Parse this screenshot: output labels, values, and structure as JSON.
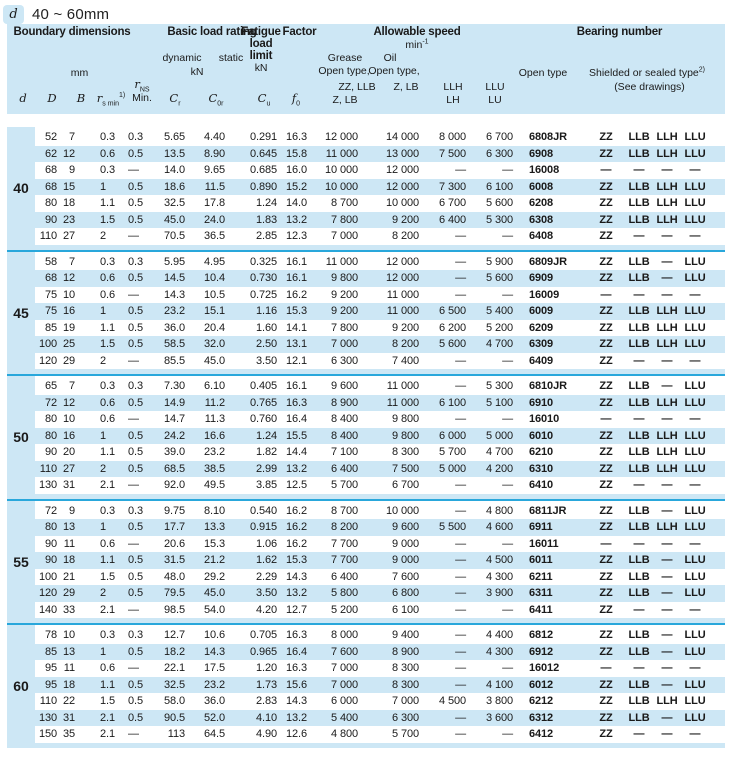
{
  "title": {
    "badge": "d",
    "range": "40 ~ 60mm"
  },
  "colors": {
    "light_blue": "#cde7f5",
    "cyan_line": "#29a7db",
    "text": "#1a1a1a"
  },
  "header": {
    "boundary_dimensions": "Boundary dimensions",
    "mm": "mm",
    "basic_load_rating": "Basic load rating",
    "dynamic": "dynamic",
    "static": "static",
    "kn_dynamic": "kN",
    "fatigue_l1": "Fatigue",
    "fatigue_l2": "load",
    "fatigue_l3": "limit",
    "fatigue_kn": "kN",
    "factor": "Factor",
    "allowable_speed": "Allowable speed",
    "min_base": "min",
    "min_sup": "-1",
    "grease": "Grease",
    "oil": "Oil",
    "open_type_grease": "Open type,",
    "open_type_oil": "Open type,",
    "zz_llb": "ZZ, LLB",
    "z_lb_oil": "Z, LB",
    "z_lb_grease": "Z, LB",
    "llh": "LLH",
    "lh": "LH",
    "llu": "LLU",
    "lu": "LU",
    "bearing_number": "Bearing number",
    "open_type_bearing": "Open type",
    "shielded": "Shielded or sealed type",
    "shielded_sup": "2)",
    "see_drawings": "(See drawings)",
    "sym": {
      "d": "d",
      "D": "D",
      "B": "B",
      "r": "r",
      "s_min": "s min",
      "s_min_sup": "1)",
      "NS": "NS",
      "Min": "Min.",
      "C": "C",
      "r_sub": "r",
      "zero_r": "0r",
      "u": "u",
      "f": "f",
      "zero": "0"
    }
  },
  "columns": [
    "D",
    "B",
    "rs-min",
    "rns-min",
    "Cr",
    "C0r",
    "Cu",
    "f0",
    "speed-grease",
    "speed-oil",
    "speed-llh",
    "speed-llu",
    "bearing-number",
    "seal-zz",
    "seal-llb",
    "seal-llh",
    "seal-llu"
  ],
  "blocks": [
    {
      "d": "40",
      "rows": [
        [
          "52",
          "7",
          "0.3",
          "0.3",
          "5.65",
          "4.40",
          "0.291",
          "16.3",
          "12 000",
          "14 000",
          "8 000",
          "6 700",
          "6808JR",
          "ZZ",
          "LLB",
          "LLH",
          "LLU"
        ],
        [
          "62",
          "12",
          "0.6",
          "0.5",
          "13.5",
          "8.90",
          "0.645",
          "15.8",
          "11 000",
          "13 000",
          "7 500",
          "6 300",
          "6908",
          "ZZ",
          "LLB",
          "LLH",
          "LLU"
        ],
        [
          "68",
          "9",
          "0.3",
          "—",
          "14.0",
          "9.65",
          "0.685",
          "16.0",
          "10 000",
          "12 000",
          "—",
          "—",
          "16008",
          "—",
          "—",
          "—",
          "—"
        ],
        [
          "68",
          "15",
          "1",
          "0.5",
          "18.6",
          "11.5",
          "0.890",
          "15.2",
          "10 000",
          "12 000",
          "7 300",
          "6 100",
          "6008",
          "ZZ",
          "LLB",
          "LLH",
          "LLU"
        ],
        [
          "80",
          "18",
          "1.1",
          "0.5",
          "32.5",
          "17.8",
          "1.24",
          "14.0",
          "8 700",
          "10 000",
          "6 700",
          "5 600",
          "6208",
          "ZZ",
          "LLB",
          "LLH",
          "LLU"
        ],
        [
          "90",
          "23",
          "1.5",
          "0.5",
          "45.0",
          "24.0",
          "1.83",
          "13.2",
          "7 800",
          "9 200",
          "6 400",
          "5 300",
          "6308",
          "ZZ",
          "LLB",
          "LLH",
          "LLU"
        ],
        [
          "110",
          "27",
          "2",
          "—",
          "70.5",
          "36.5",
          "2.85",
          "12.3",
          "7 000",
          "8 200",
          "—",
          "—",
          "6408",
          "ZZ",
          "—",
          "—",
          "—"
        ]
      ]
    },
    {
      "d": "45",
      "rows": [
        [
          "58",
          "7",
          "0.3",
          "0.3",
          "5.95",
          "4.95",
          "0.325",
          "16.1",
          "11 000",
          "12 000",
          "—",
          "5 900",
          "6809JR",
          "ZZ",
          "LLB",
          "—",
          "LLU"
        ],
        [
          "68",
          "12",
          "0.6",
          "0.5",
          "14.5",
          "10.4",
          "0.730",
          "16.1",
          "9 800",
          "12 000",
          "—",
          "5 600",
          "6909",
          "ZZ",
          "LLB",
          "—",
          "LLU"
        ],
        [
          "75",
          "10",
          "0.6",
          "—",
          "14.3",
          "10.5",
          "0.725",
          "16.2",
          "9 200",
          "11 000",
          "—",
          "—",
          "16009",
          "—",
          "—",
          "—",
          "—"
        ],
        [
          "75",
          "16",
          "1",
          "0.5",
          "23.2",
          "15.1",
          "1.16",
          "15.3",
          "9 200",
          "11 000",
          "6 500",
          "5 400",
          "6009",
          "ZZ",
          "LLB",
          "LLH",
          "LLU"
        ],
        [
          "85",
          "19",
          "1.1",
          "0.5",
          "36.0",
          "20.4",
          "1.60",
          "14.1",
          "7 800",
          "9 200",
          "6 200",
          "5 200",
          "6209",
          "ZZ",
          "LLB",
          "LLH",
          "LLU"
        ],
        [
          "100",
          "25",
          "1.5",
          "0.5",
          "58.5",
          "32.0",
          "2.50",
          "13.1",
          "7 000",
          "8 200",
          "5 600",
          "4 700",
          "6309",
          "ZZ",
          "LLB",
          "LLH",
          "LLU"
        ],
        [
          "120",
          "29",
          "2",
          "—",
          "85.5",
          "45.0",
          "3.50",
          "12.1",
          "6 300",
          "7 400",
          "—",
          "—",
          "6409",
          "ZZ",
          "—",
          "—",
          "—"
        ]
      ]
    },
    {
      "d": "50",
      "rows": [
        [
          "65",
          "7",
          "0.3",
          "0.3",
          "7.30",
          "6.10",
          "0.405",
          "16.1",
          "9 600",
          "11 000",
          "—",
          "5 300",
          "6810JR",
          "ZZ",
          "LLB",
          "—",
          "LLU"
        ],
        [
          "72",
          "12",
          "0.6",
          "0.5",
          "14.9",
          "11.2",
          "0.765",
          "16.3",
          "8 900",
          "11 000",
          "6 100",
          "5 100",
          "6910",
          "ZZ",
          "LLB",
          "LLH",
          "LLU"
        ],
        [
          "80",
          "10",
          "0.6",
          "—",
          "14.7",
          "11.3",
          "0.760",
          "16.4",
          "8 400",
          "9 800",
          "—",
          "—",
          "16010",
          "—",
          "—",
          "—",
          "—"
        ],
        [
          "80",
          "16",
          "1",
          "0.5",
          "24.2",
          "16.6",
          "1.24",
          "15.5",
          "8 400",
          "9 800",
          "6 000",
          "5 000",
          "6010",
          "ZZ",
          "LLB",
          "LLH",
          "LLU"
        ],
        [
          "90",
          "20",
          "1.1",
          "0.5",
          "39.0",
          "23.2",
          "1.82",
          "14.4",
          "7 100",
          "8 300",
          "5 700",
          "4 700",
          "6210",
          "ZZ",
          "LLB",
          "LLH",
          "LLU"
        ],
        [
          "110",
          "27",
          "2",
          "0.5",
          "68.5",
          "38.5",
          "2.99",
          "13.2",
          "6 400",
          "7 500",
          "5 000",
          "4 200",
          "6310",
          "ZZ",
          "LLB",
          "LLH",
          "LLU"
        ],
        [
          "130",
          "31",
          "2.1",
          "—",
          "92.0",
          "49.5",
          "3.85",
          "12.5",
          "5 700",
          "6 700",
          "—",
          "—",
          "6410",
          "ZZ",
          "—",
          "—",
          "—"
        ]
      ]
    },
    {
      "d": "55",
      "rows": [
        [
          "72",
          "9",
          "0.3",
          "0.3",
          "9.75",
          "8.10",
          "0.540",
          "16.2",
          "8 700",
          "10 000",
          "—",
          "4 800",
          "6811JR",
          "ZZ",
          "LLB",
          "—",
          "LLU"
        ],
        [
          "80",
          "13",
          "1",
          "0.5",
          "17.7",
          "13.3",
          "0.915",
          "16.2",
          "8 200",
          "9 600",
          "5 500",
          "4 600",
          "6911",
          "ZZ",
          "LLB",
          "LLH",
          "LLU"
        ],
        [
          "90",
          "11",
          "0.6",
          "—",
          "20.6",
          "15.3",
          "1.06",
          "16.2",
          "7 700",
          "9 000",
          "—",
          "—",
          "16011",
          "—",
          "—",
          "—",
          "—"
        ],
        [
          "90",
          "18",
          "1.1",
          "0.5",
          "31.5",
          "21.2",
          "1.62",
          "15.3",
          "7 700",
          "9 000",
          "—",
          "4 500",
          "6011",
          "ZZ",
          "LLB",
          "—",
          "LLU"
        ],
        [
          "100",
          "21",
          "1.5",
          "0.5",
          "48.0",
          "29.2",
          "2.29",
          "14.3",
          "6 400",
          "7 600",
          "—",
          "4 300",
          "6211",
          "ZZ",
          "LLB",
          "—",
          "LLU"
        ],
        [
          "120",
          "29",
          "2",
          "0.5",
          "79.5",
          "45.0",
          "3.50",
          "13.2",
          "5 800",
          "6 800",
          "—",
          "3 900",
          "6311",
          "ZZ",
          "LLB",
          "—",
          "LLU"
        ],
        [
          "140",
          "33",
          "2.1",
          "—",
          "98.5",
          "54.0",
          "4.20",
          "12.7",
          "5 200",
          "6 100",
          "—",
          "—",
          "6411",
          "ZZ",
          "—",
          "—",
          "—"
        ]
      ]
    },
    {
      "d": "60",
      "rows": [
        [
          "78",
          "10",
          "0.3",
          "0.3",
          "12.7",
          "10.6",
          "0.705",
          "16.3",
          "8 000",
          "9 400",
          "—",
          "4 400",
          "6812",
          "ZZ",
          "LLB",
          "—",
          "LLU"
        ],
        [
          "85",
          "13",
          "1",
          "0.5",
          "18.2",
          "14.3",
          "0.965",
          "16.4",
          "7 600",
          "8 900",
          "—",
          "4 300",
          "6912",
          "ZZ",
          "LLB",
          "—",
          "LLU"
        ],
        [
          "95",
          "11",
          "0.6",
          "—",
          "22.1",
          "17.5",
          "1.20",
          "16.3",
          "7 000",
          "8 300",
          "—",
          "—",
          "16012",
          "—",
          "—",
          "—",
          "—"
        ],
        [
          "95",
          "18",
          "1.1",
          "0.5",
          "32.5",
          "23.2",
          "1.73",
          "15.6",
          "7 000",
          "8 300",
          "—",
          "4 100",
          "6012",
          "ZZ",
          "LLB",
          "—",
          "LLU"
        ],
        [
          "110",
          "22",
          "1.5",
          "0.5",
          "58.0",
          "36.0",
          "2.83",
          "14.3",
          "6 000",
          "7 000",
          "4 500",
          "3 800",
          "6212",
          "ZZ",
          "LLB",
          "LLH",
          "LLU"
        ],
        [
          "130",
          "31",
          "2.1",
          "0.5",
          "90.5",
          "52.0",
          "4.10",
          "13.2",
          "5 400",
          "6 300",
          "—",
          "3 600",
          "6312",
          "ZZ",
          "LLB",
          "—",
          "LLU"
        ],
        [
          "150",
          "35",
          "2.1",
          "—",
          "113",
          "64.5",
          "4.90",
          "12.6",
          "4 800",
          "5 700",
          "—",
          "—",
          "6412",
          "ZZ",
          "—",
          "—",
          "—"
        ]
      ]
    }
  ]
}
